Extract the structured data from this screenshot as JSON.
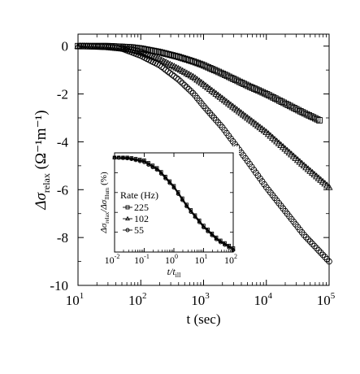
{
  "chart_data": [
    {
      "type": "scatter",
      "title": "",
      "xlabel": "t (sec)",
      "ylabel": "Δσ",
      "ylabel_sub": "relax",
      "ylabel_units": "(Ω⁻¹m⁻¹)",
      "xscale": "log",
      "xlim": [
        10,
        100000
      ],
      "ylim": [
        -10,
        0.5
      ],
      "xticks": [
        {
          "value": 10,
          "label": "10",
          "exp": "1"
        },
        {
          "value": 100,
          "label": "10",
          "exp": "2"
        },
        {
          "value": 1000,
          "label": "10",
          "exp": "3"
        },
        {
          "value": 10000,
          "label": "10",
          "exp": "4"
        },
        {
          "value": 100000,
          "label": "10",
          "exp": "5"
        }
      ],
      "yticks": [
        {
          "value": 0,
          "label": "0"
        },
        {
          "value": -2,
          "label": "-2"
        },
        {
          "value": -4,
          "label": "-4"
        },
        {
          "value": -6,
          "label": "-6"
        },
        {
          "value": -8,
          "label": "-8"
        },
        {
          "value": -10,
          "label": "-10"
        }
      ],
      "series": [
        {
          "marker": "square",
          "x": [
            10,
            30,
            70,
            100,
            200,
            400,
            700,
            1000,
            2000,
            5000,
            10000,
            20000,
            40000,
            70000
          ],
          "y": [
            0,
            0,
            -0.05,
            -0.1,
            -0.25,
            -0.45,
            -0.65,
            -0.8,
            -1.15,
            -1.65,
            -2.0,
            -2.4,
            -2.8,
            -3.1
          ]
        },
        {
          "marker": "triangle",
          "x": [
            10,
            30,
            70,
            100,
            200,
            400,
            700,
            1000,
            2000,
            5000,
            10000,
            20000,
            40000,
            100000
          ],
          "y": [
            0,
            -0.05,
            -0.15,
            -0.25,
            -0.55,
            -0.95,
            -1.3,
            -1.6,
            -2.2,
            -3.0,
            -3.6,
            -4.3,
            -5.0,
            -5.9
          ]
        },
        {
          "marker": "circle",
          "x": [
            50,
            100,
            200,
            400,
            700,
            1000,
            2000,
            5000,
            10000,
            20000,
            40000,
            100000
          ],
          "y": [
            -0.1,
            -0.4,
            -0.8,
            -1.4,
            -2.0,
            -2.5,
            -3.4,
            -4.8,
            -5.9,
            -6.9,
            -7.9,
            -9.0
          ]
        }
      ]
    },
    {
      "type": "line",
      "title": "",
      "xlabel": "t/t",
      "xlabel_sub": "ill",
      "ylabel": "Δσ",
      "ylabel_sub": "relax",
      "ylabel_mid": "/Δσ",
      "ylabel_sub2": "Illum",
      "ylabel_units": "(%)",
      "xscale": "log",
      "xlim": [
        0.01,
        100
      ],
      "ylim": [
        -100,
        5
      ],
      "xticks": [
        {
          "value": 0.01,
          "label": "10",
          "exp": "-2"
        },
        {
          "value": 0.1,
          "label": "10",
          "exp": "-1"
        },
        {
          "value": 1,
          "label": "10",
          "exp": "0"
        },
        {
          "value": 10,
          "label": "10",
          "exp": "1"
        },
        {
          "value": 100,
          "label": "10",
          "exp": "2"
        }
      ],
      "legend": {
        "title": "Rate (Hz)",
        "placement": "center-right"
      },
      "series": [
        {
          "name": "225",
          "marker": "square",
          "x": [
            0.01,
            0.03,
            0.1,
            0.3,
            1,
            3,
            10,
            30,
            100
          ],
          "y": [
            0,
            0,
            -3,
            -12,
            -30,
            -52,
            -72,
            -86,
            -96
          ]
        },
        {
          "name": "102",
          "marker": "triangle",
          "x": [
            0.01,
            0.03,
            0.1,
            0.3,
            1,
            3,
            10,
            30,
            100
          ],
          "y": [
            0,
            -0.5,
            -4,
            -13,
            -31,
            -53,
            -73,
            -87,
            -97
          ]
        },
        {
          "name": "55",
          "marker": "circle",
          "x": [
            0.01,
            0.03,
            0.1,
            0.3,
            1,
            3,
            10,
            30,
            100
          ],
          "y": [
            0,
            -1,
            -5,
            -14,
            -32,
            -54,
            -74,
            -88,
            -98
          ]
        }
      ]
    }
  ]
}
